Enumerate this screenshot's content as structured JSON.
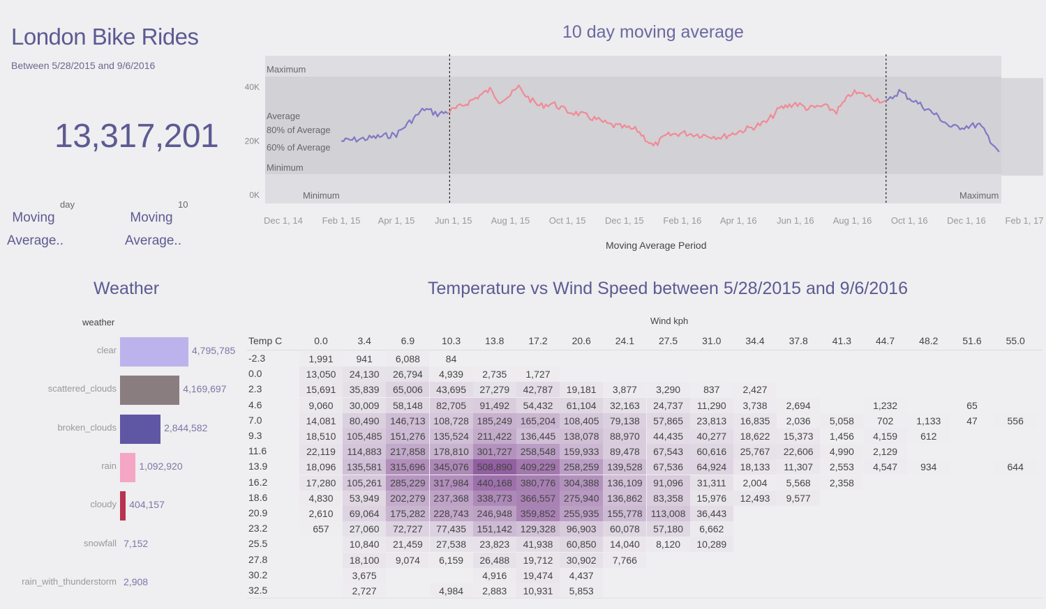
{
  "header": {
    "title": "London Bike Rides",
    "subtitle": "Between 5/28/2015 and 9/6/2016",
    "total": "13,317,201"
  },
  "controls": {
    "left": {
      "small": "day",
      "label_line1": "Moving",
      "label_line2": "Average.."
    },
    "right": {
      "small": "10",
      "label_line1": "Moving",
      "label_line2": "Average.."
    }
  },
  "moving_average_chart": {
    "title": "10 day moving average",
    "xlabel": "Moving Average Period",
    "y_ticks": [
      "40K",
      "20K",
      "0K"
    ],
    "band_labels": {
      "maximum": "Maximum",
      "average": "Average",
      "p80": "80% of Average",
      "p60": "60% of Average",
      "minimum": "Minimum"
    },
    "axis_markers": {
      "left_min": "Minimum",
      "right_max": "Maximum"
    },
    "x_ticks": [
      "Dec 1, 14",
      "Feb 1, 15",
      "Apr 1, 15",
      "Jun 1, 15",
      "Aug 1, 15",
      "Oct 1, 15",
      "Dec 1, 15",
      "Feb 1, 16",
      "Apr 1, 16",
      "Jun 1, 16",
      "Aug 1, 16",
      "Oct 1, 16",
      "Dec 1, 16",
      "Feb 1, 17"
    ],
    "colors": {
      "in_period": "#f08a96",
      "outside_period": "#7f78c6",
      "band": "#d9d8dc"
    }
  },
  "chart_data": [
    {
      "type": "line",
      "title": "10 day moving average",
      "xlabel": "Moving Average Period",
      "ylabel": "",
      "ylim": [
        0,
        45000
      ],
      "x_range": [
        "2014-12-01",
        "2017-02-01"
      ],
      "period_markers": [
        "2015-05-28",
        "2016-09-06"
      ],
      "x": [
        "2015-02-01",
        "2015-03-01",
        "2015-04-01",
        "2015-04-15",
        "2015-05-01",
        "2015-05-15",
        "2015-05-28",
        "2015-06-10",
        "2015-06-25",
        "2015-07-10",
        "2015-07-20",
        "2015-08-01",
        "2015-08-10",
        "2015-08-20",
        "2015-09-01",
        "2015-09-15",
        "2015-10-01",
        "2015-10-15",
        "2015-11-01",
        "2015-11-15",
        "2015-12-01",
        "2015-12-15",
        "2016-01-01",
        "2016-01-15",
        "2016-02-01",
        "2016-02-15",
        "2016-03-01",
        "2016-03-15",
        "2016-04-01",
        "2016-04-15",
        "2016-05-01",
        "2016-05-15",
        "2016-06-01",
        "2016-06-15",
        "2016-07-01",
        "2016-07-15",
        "2016-08-01",
        "2016-08-15",
        "2016-09-01",
        "2016-09-06",
        "2016-09-20",
        "2016-10-01",
        "2016-10-15",
        "2016-11-01",
        "2016-11-15",
        "2016-12-01",
        "2016-12-15",
        "2017-01-05"
      ],
      "y": [
        20000,
        21000,
        22500,
        27000,
        32000,
        30000,
        31000,
        33000,
        36000,
        39000,
        35000,
        37000,
        40000,
        36000,
        33000,
        34000,
        31000,
        30000,
        28000,
        26000,
        25000,
        24000,
        18000,
        22000,
        23000,
        22500,
        22000,
        21500,
        23500,
        25000,
        27000,
        32000,
        34000,
        32000,
        33000,
        31000,
        38000,
        37000,
        35000,
        34000,
        38500,
        36000,
        33000,
        29000,
        25000,
        25500,
        26000,
        16000
      ],
      "band_levels": {
        "maximum": 42000,
        "average": 31000,
        "p80": 25000,
        "p60": 19000,
        "minimum": 15000
      }
    },
    {
      "type": "bar",
      "title": "Weather",
      "xlabel": "",
      "ylabel": "weather",
      "categories": [
        "clear",
        "scattered_clouds",
        "broken_clouds",
        "rain",
        "cloudy",
        "snowfall",
        "rain_with_thunderstorm"
      ],
      "values": [
        4795785,
        4169697,
        2844582,
        1092920,
        404157,
        7152,
        2908
      ],
      "labels": [
        "4,795,785",
        "4,169,697",
        "2,844,582",
        "1,092,920",
        "404,157",
        "7,152",
        "2,908"
      ],
      "colors": [
        "#bcb3ec",
        "#8a7d80",
        "#5f57a3",
        "#f4a6c4",
        "#b8334f",
        "#b8334f",
        "#b8334f"
      ]
    },
    {
      "type": "heatmap",
      "title": "Temperature vs Wind Speed between 5/28/2015 and 9/6/2016",
      "xlabel": "Wind kph",
      "ylabel": "Temp C",
      "x": [
        "0.0",
        "3.4",
        "6.9",
        "10.3",
        "13.8",
        "17.2",
        "20.6",
        "24.1",
        "27.5",
        "31.0",
        "34.4",
        "37.8",
        "41.3",
        "44.7",
        "48.2",
        "51.6",
        "55.0"
      ],
      "y": [
        "-2.3",
        "0.0",
        "2.3",
        "4.6",
        "7.0",
        "9.3",
        "11.6",
        "13.9",
        "16.2",
        "18.6",
        "20.9",
        "23.2",
        "25.5",
        "27.8",
        "30.2",
        "32.5"
      ],
      "values": [
        [
          1991,
          941,
          6088,
          84,
          null,
          null,
          null,
          null,
          null,
          null,
          null,
          null,
          null,
          null,
          null,
          null,
          null
        ],
        [
          13050,
          24130,
          26794,
          4939,
          2735,
          1727,
          null,
          null,
          null,
          null,
          null,
          null,
          null,
          null,
          null,
          null,
          null
        ],
        [
          15691,
          35839,
          65006,
          43695,
          27279,
          42787,
          19181,
          3877,
          3290,
          837,
          2427,
          null,
          null,
          null,
          null,
          null,
          null
        ],
        [
          9060,
          30009,
          58148,
          82705,
          91492,
          54432,
          61104,
          32163,
          24737,
          11290,
          3738,
          2694,
          null,
          1232,
          null,
          65,
          null
        ],
        [
          14081,
          80490,
          146713,
          108728,
          185249,
          165204,
          108405,
          79138,
          57865,
          23813,
          16835,
          2036,
          5058,
          702,
          1133,
          47,
          556
        ],
        [
          18510,
          105485,
          151276,
          135524,
          211422,
          136445,
          138078,
          88970,
          44435,
          40277,
          18622,
          15373,
          1456,
          4159,
          612,
          null,
          null
        ],
        [
          22119,
          114883,
          217858,
          178810,
          301727,
          258548,
          159933,
          89478,
          67543,
          60616,
          25767,
          22606,
          4990,
          2129,
          null,
          null,
          null
        ],
        [
          18096,
          135581,
          315696,
          345076,
          508890,
          409229,
          258259,
          139528,
          67536,
          64924,
          18133,
          11307,
          2553,
          4547,
          934,
          null,
          644
        ],
        [
          17280,
          105261,
          285229,
          317984,
          440168,
          380776,
          304388,
          136109,
          91096,
          31311,
          2004,
          5568,
          2358,
          null,
          null,
          null,
          null
        ],
        [
          4830,
          53949,
          202279,
          237368,
          338773,
          366557,
          275940,
          136862,
          83358,
          15976,
          12493,
          9577,
          null,
          null,
          null,
          null,
          null
        ],
        [
          2610,
          69064,
          175282,
          228743,
          246948,
          359852,
          255935,
          155778,
          113008,
          36443,
          null,
          null,
          null,
          null,
          null,
          null,
          null
        ],
        [
          657,
          27060,
          72727,
          77435,
          151142,
          129328,
          96903,
          60078,
          57180,
          6662,
          null,
          null,
          null,
          null,
          null,
          null,
          null
        ],
        [
          null,
          10840,
          21459,
          27538,
          23823,
          41938,
          60850,
          14040,
          8120,
          10289,
          null,
          null,
          null,
          null,
          null,
          null,
          null
        ],
        [
          null,
          18100,
          9074,
          6159,
          26488,
          19712,
          30902,
          7766,
          null,
          null,
          null,
          null,
          null,
          null,
          null,
          null,
          null
        ],
        [
          null,
          3675,
          null,
          null,
          4916,
          19474,
          4437,
          null,
          null,
          null,
          null,
          null,
          null,
          null,
          null,
          null,
          null
        ],
        [
          null,
          2727,
          null,
          4984,
          2883,
          10931,
          5853,
          null,
          null,
          null,
          null,
          null,
          null,
          null,
          null,
          null,
          null
        ]
      ],
      "color_max": "#5e2a6b"
    }
  ]
}
